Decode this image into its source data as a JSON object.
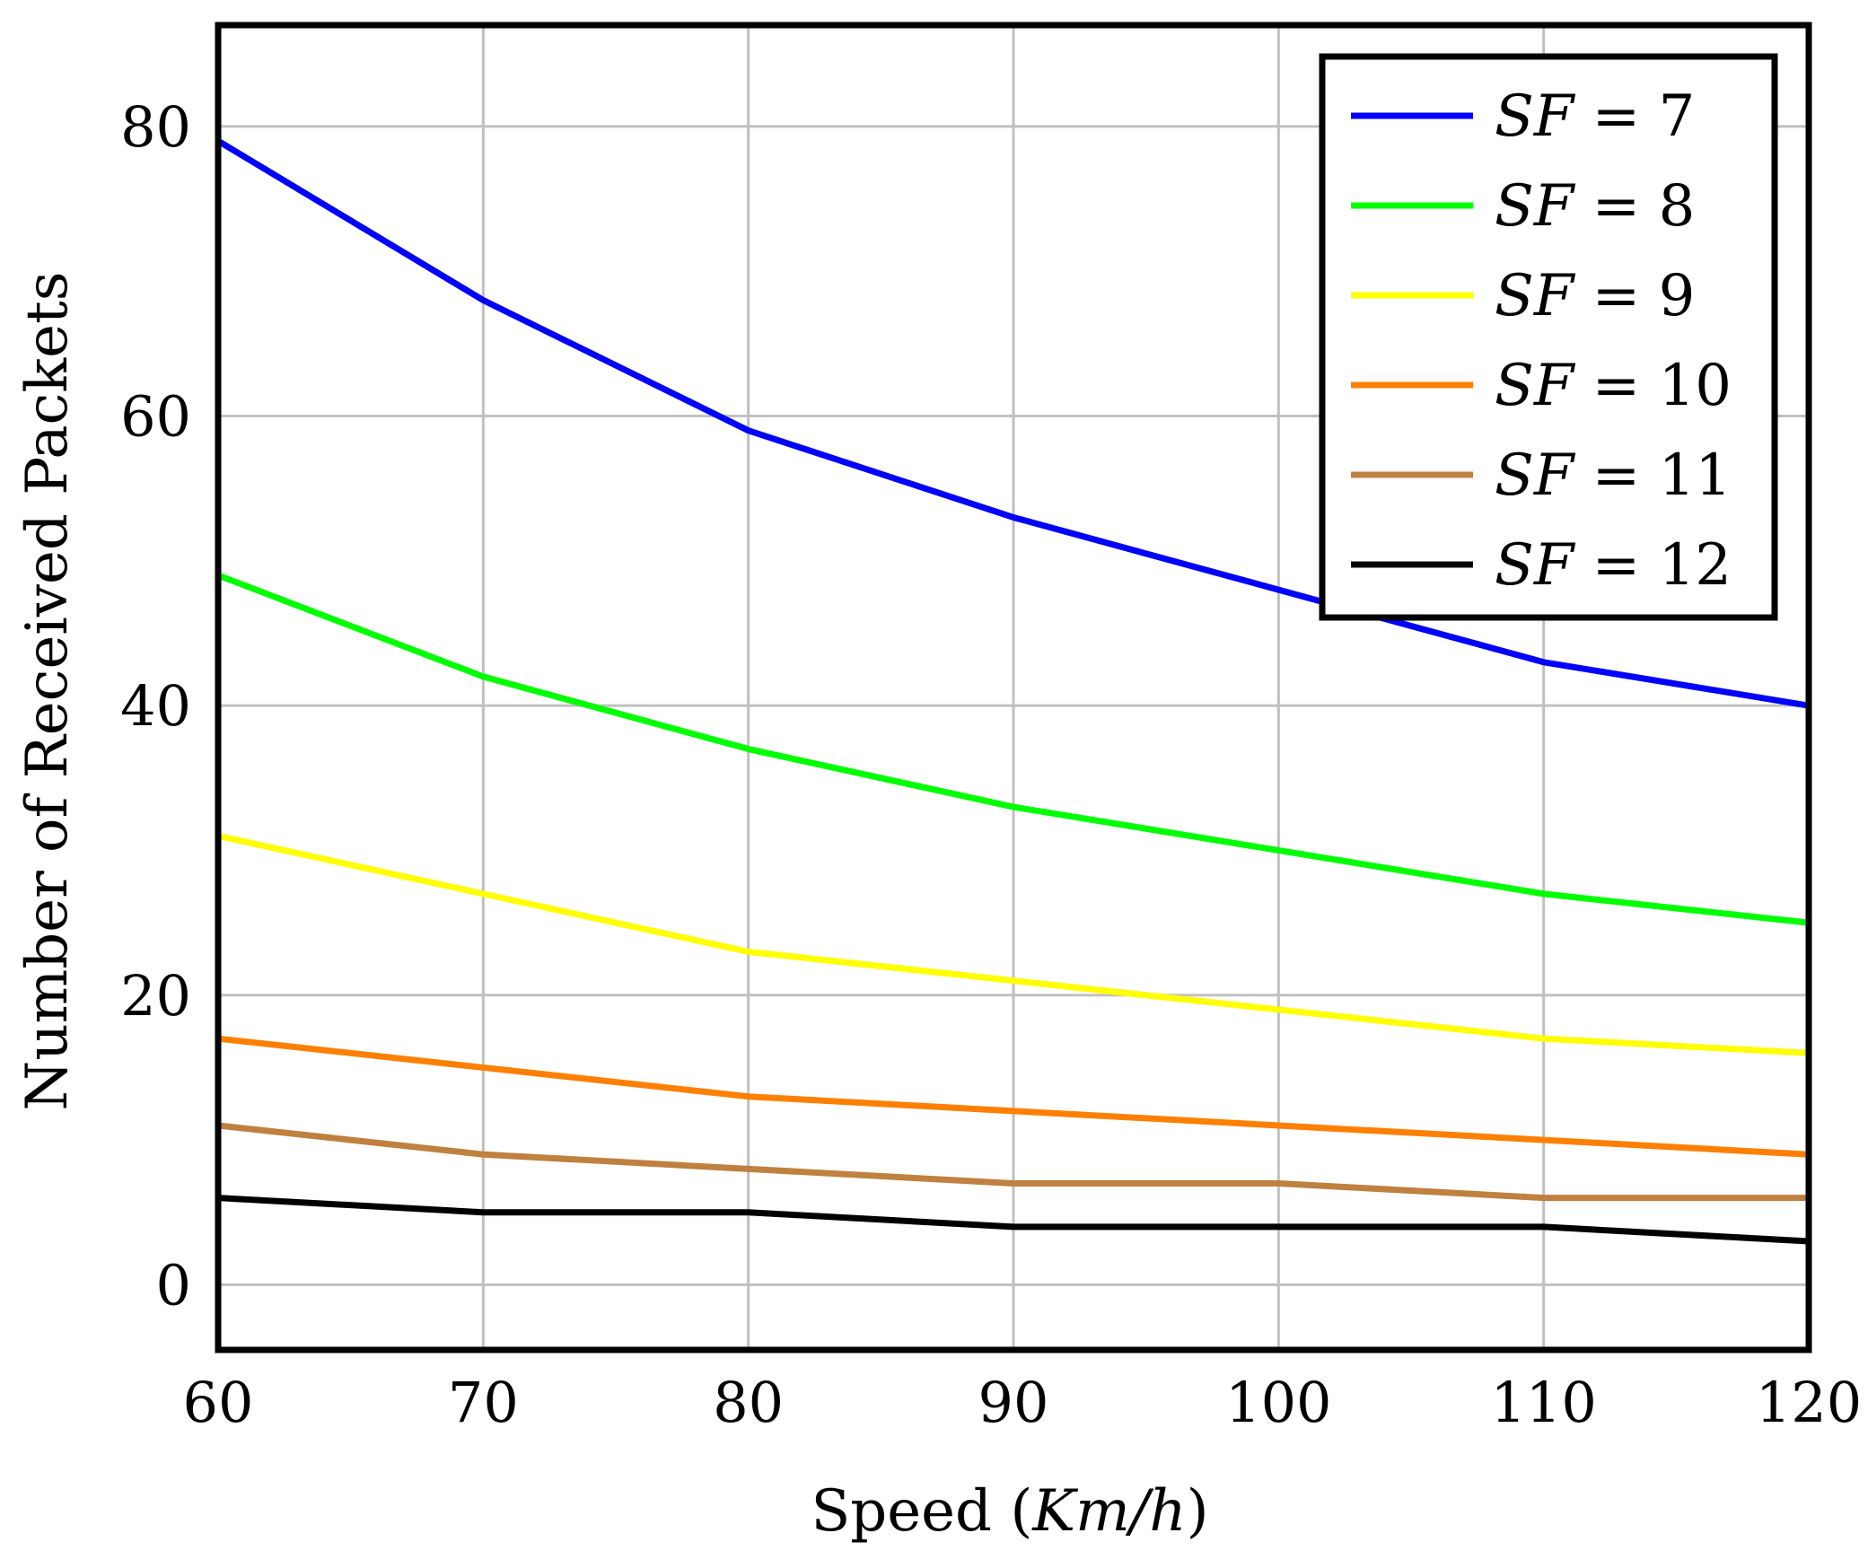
{
  "chart_data": {
    "type": "line",
    "title": "",
    "xlabel_prefix": "Speed (",
    "xlabel_unit": "Km/h",
    "xlabel_suffix": ")",
    "ylabel": "Number of Received Packets",
    "xlim": [
      60,
      120
    ],
    "ylim": [
      -4.5,
      87
    ],
    "x": [
      60,
      70,
      80,
      90,
      100,
      110,
      120
    ],
    "xticks": [
      60,
      70,
      80,
      90,
      100,
      110,
      120
    ],
    "yticks": [
      0,
      20,
      40,
      60,
      80
    ],
    "grid": true,
    "legend_position": "top-right",
    "series": [
      {
        "name": "SF = 7",
        "var": "SF",
        "rel": " = ",
        "val": "7",
        "color": "#0000ff",
        "values": [
          79,
          68,
          59,
          53,
          48,
          43,
          40
        ]
      },
      {
        "name": "SF = 8",
        "var": "SF",
        "rel": " = ",
        "val": "8",
        "color": "#00ff00",
        "values": [
          49,
          42,
          37,
          33,
          30,
          27,
          25
        ]
      },
      {
        "name": "SF = 9",
        "var": "SF",
        "rel": " = ",
        "val": "9",
        "color": "#ffff00",
        "values": [
          31,
          27,
          23,
          21,
          19,
          17,
          16
        ]
      },
      {
        "name": "SF = 10",
        "var": "SF",
        "rel": " = ",
        "val": "10",
        "color": "#ff8000",
        "values": [
          17,
          15,
          13,
          12,
          11,
          10,
          9
        ]
      },
      {
        "name": "SF = 11",
        "var": "SF",
        "rel": " = ",
        "val": "11",
        "color": "#bf8040",
        "values": [
          11,
          9,
          8,
          7,
          7,
          6,
          6
        ]
      },
      {
        "name": "SF = 12",
        "var": "SF",
        "rel": " = ",
        "val": "12",
        "color": "#000000",
        "values": [
          6,
          5,
          5,
          4,
          4,
          4,
          3
        ]
      }
    ]
  }
}
